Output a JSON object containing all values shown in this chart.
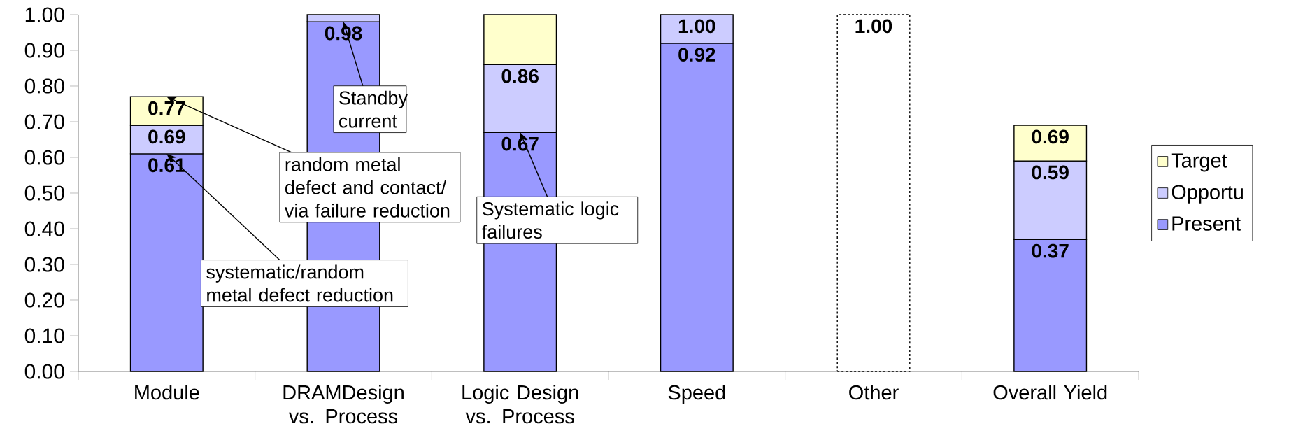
{
  "chart_data": {
    "type": "bar",
    "stacked": true,
    "legend": "right",
    "categories": [
      "Module",
      "DRAMDesign vs. Process",
      "Logic Design vs. Process",
      "Speed",
      "Other",
      "Overall Yield"
    ],
    "series": [
      {
        "name": "Present",
        "color": "#9999ff",
        "values": [
          0.61,
          0.98,
          0.67,
          0.92,
          null,
          0.37
        ]
      },
      {
        "name": "Opportu",
        "color": "#ccccff",
        "values": [
          0.08,
          0.02,
          0.19,
          0.08,
          null,
          0.22
        ]
      },
      {
        "name": "Target",
        "color": "#ffffcc",
        "values": [
          0.08,
          null,
          0.14,
          null,
          null,
          0.1
        ]
      },
      {
        "color": "#ffffff",
        "line_style": "dotted",
        "values": [
          null,
          null,
          null,
          null,
          1.0,
          null
        ]
      }
    ],
    "ylim": [
      0,
      1
    ],
    "yticks": [
      {
        "value": 0,
        "label": "0.00"
      },
      {
        "value": 0.1,
        "label": "0.10"
      },
      {
        "value": 0.2,
        "label": "0.20"
      },
      {
        "value": 0.3,
        "label": "0.30"
      },
      {
        "value": 0.4,
        "label": "0.40"
      },
      {
        "value": 0.5,
        "label": "0.50"
      },
      {
        "value": 0.6,
        "label": "0.60"
      },
      {
        "value": 0.7,
        "label": "0.70"
      },
      {
        "value": 0.8,
        "label": "0.80"
      },
      {
        "value": 0.9,
        "label": "0.90"
      },
      {
        "value": 1,
        "label": "1.00"
      }
    ],
    "annotations": [
      {
        "text": "Standby current",
        "x": "DRAMDesign vs. Process",
        "y": 0.98
      },
      {
        "text": "random metal defect and contact/ via failure reduction",
        "x": "Module",
        "y": 0.77
      },
      {
        "text": "systematic/random metal defect reduction",
        "x": "Module",
        "y": 0.61
      },
      {
        "text": "Systematic logic failures",
        "x": "Logic Design vs. Process",
        "y": 0.67
      },
      {
        "text": "0.61",
        "x": "Module",
        "y": 0.61
      },
      {
        "text": "0.69",
        "x": "Module",
        "y": 0.69
      },
      {
        "text": "0.77",
        "x": "Module",
        "y": 0.77
      },
      {
        "text": "0.98",
        "x": "DRAMDesign vs. Process",
        "y": 0.98
      },
      {
        "text": "0.67",
        "x": "Logic Design vs. Process",
        "y": 0.67
      },
      {
        "text": "0.86",
        "x": "Logic Design vs. Process",
        "y": 0.86
      },
      {
        "text": "0.92",
        "x": "Speed",
        "y": 0.92
      },
      {
        "text": "1.00",
        "x": "Speed",
        "y": 1.0
      },
      {
        "text": "1.00",
        "x": "Other",
        "y": 1.0
      },
      {
        "text": "0.37",
        "x": "Overall Yield",
        "y": 0.37
      },
      {
        "text": "0.59",
        "x": "Overall Yield",
        "y": 0.59
      },
      {
        "text": "0.69",
        "x": "Overall Yield",
        "y": 0.69
      }
    ]
  }
}
